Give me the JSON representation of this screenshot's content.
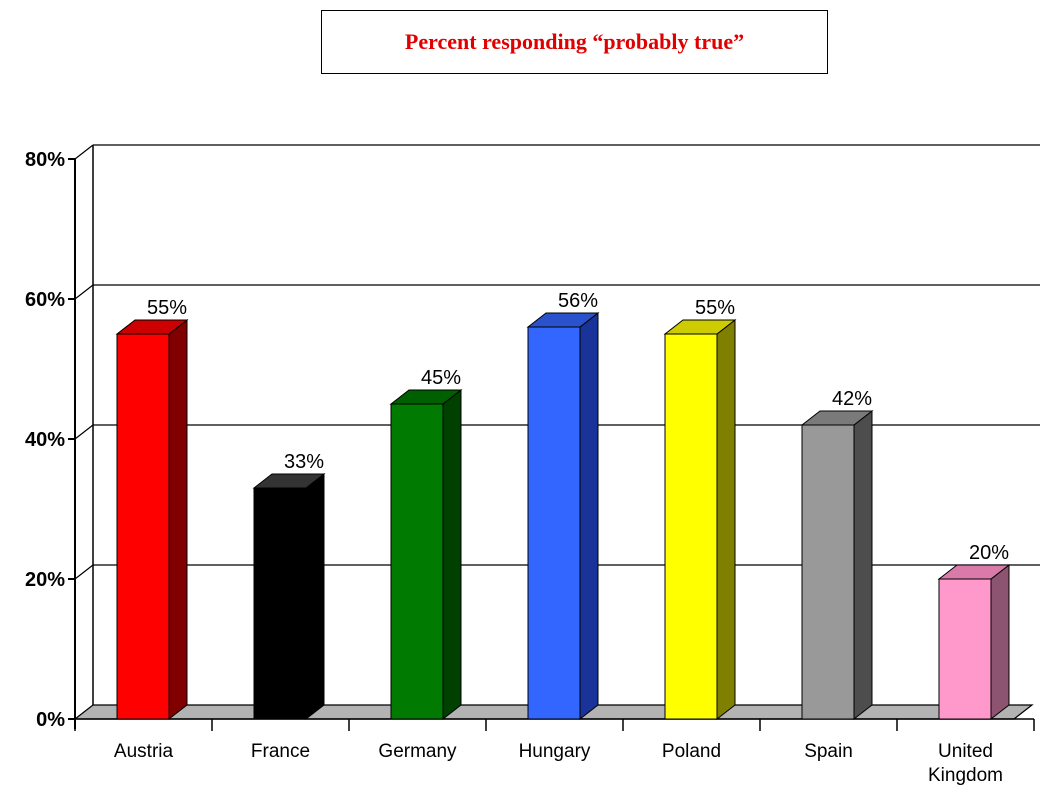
{
  "chart_data": {
    "type": "bar",
    "title": "Percent responding “probably true”",
    "categories": [
      "Austria",
      "France",
      "Germany",
      "Hungary",
      "Poland",
      "Spain",
      "United Kingdom"
    ],
    "category_lines": [
      [
        "Austria"
      ],
      [
        "France"
      ],
      [
        "Germany"
      ],
      [
        "Hungary"
      ],
      [
        "Poland"
      ],
      [
        "Spain"
      ],
      [
        "United",
        "Kingdom"
      ]
    ],
    "values": [
      55,
      33,
      45,
      56,
      55,
      42,
      20
    ],
    "data_labels": [
      "55%",
      "33%",
      "45%",
      "56%",
      "55%",
      "42%",
      "20%"
    ],
    "bar_colors": [
      "#ff0000",
      "#000000",
      "#007a00",
      "#3366ff",
      "#ffff00",
      "#999999",
      "#ff99cc"
    ],
    "bar_side_colors": [
      "#800000",
      "#000000",
      "#004000",
      "#1a3399",
      "#808000",
      "#4d4d4d",
      "#8c5470"
    ],
    "bar_top_colors": [
      "#cc0000",
      "#333333",
      "#006000",
      "#2952cc",
      "#cccc00",
      "#7a7a7a",
      "#d97aaa"
    ],
    "ylim": [
      0,
      80
    ],
    "yticks": [
      0,
      20,
      40,
      60,
      80
    ],
    "ytick_labels": [
      "0%",
      "20%",
      "40%",
      "60%",
      "80%"
    ],
    "xlabel": "",
    "ylabel": "",
    "grid": true,
    "style": "3d-bar"
  }
}
